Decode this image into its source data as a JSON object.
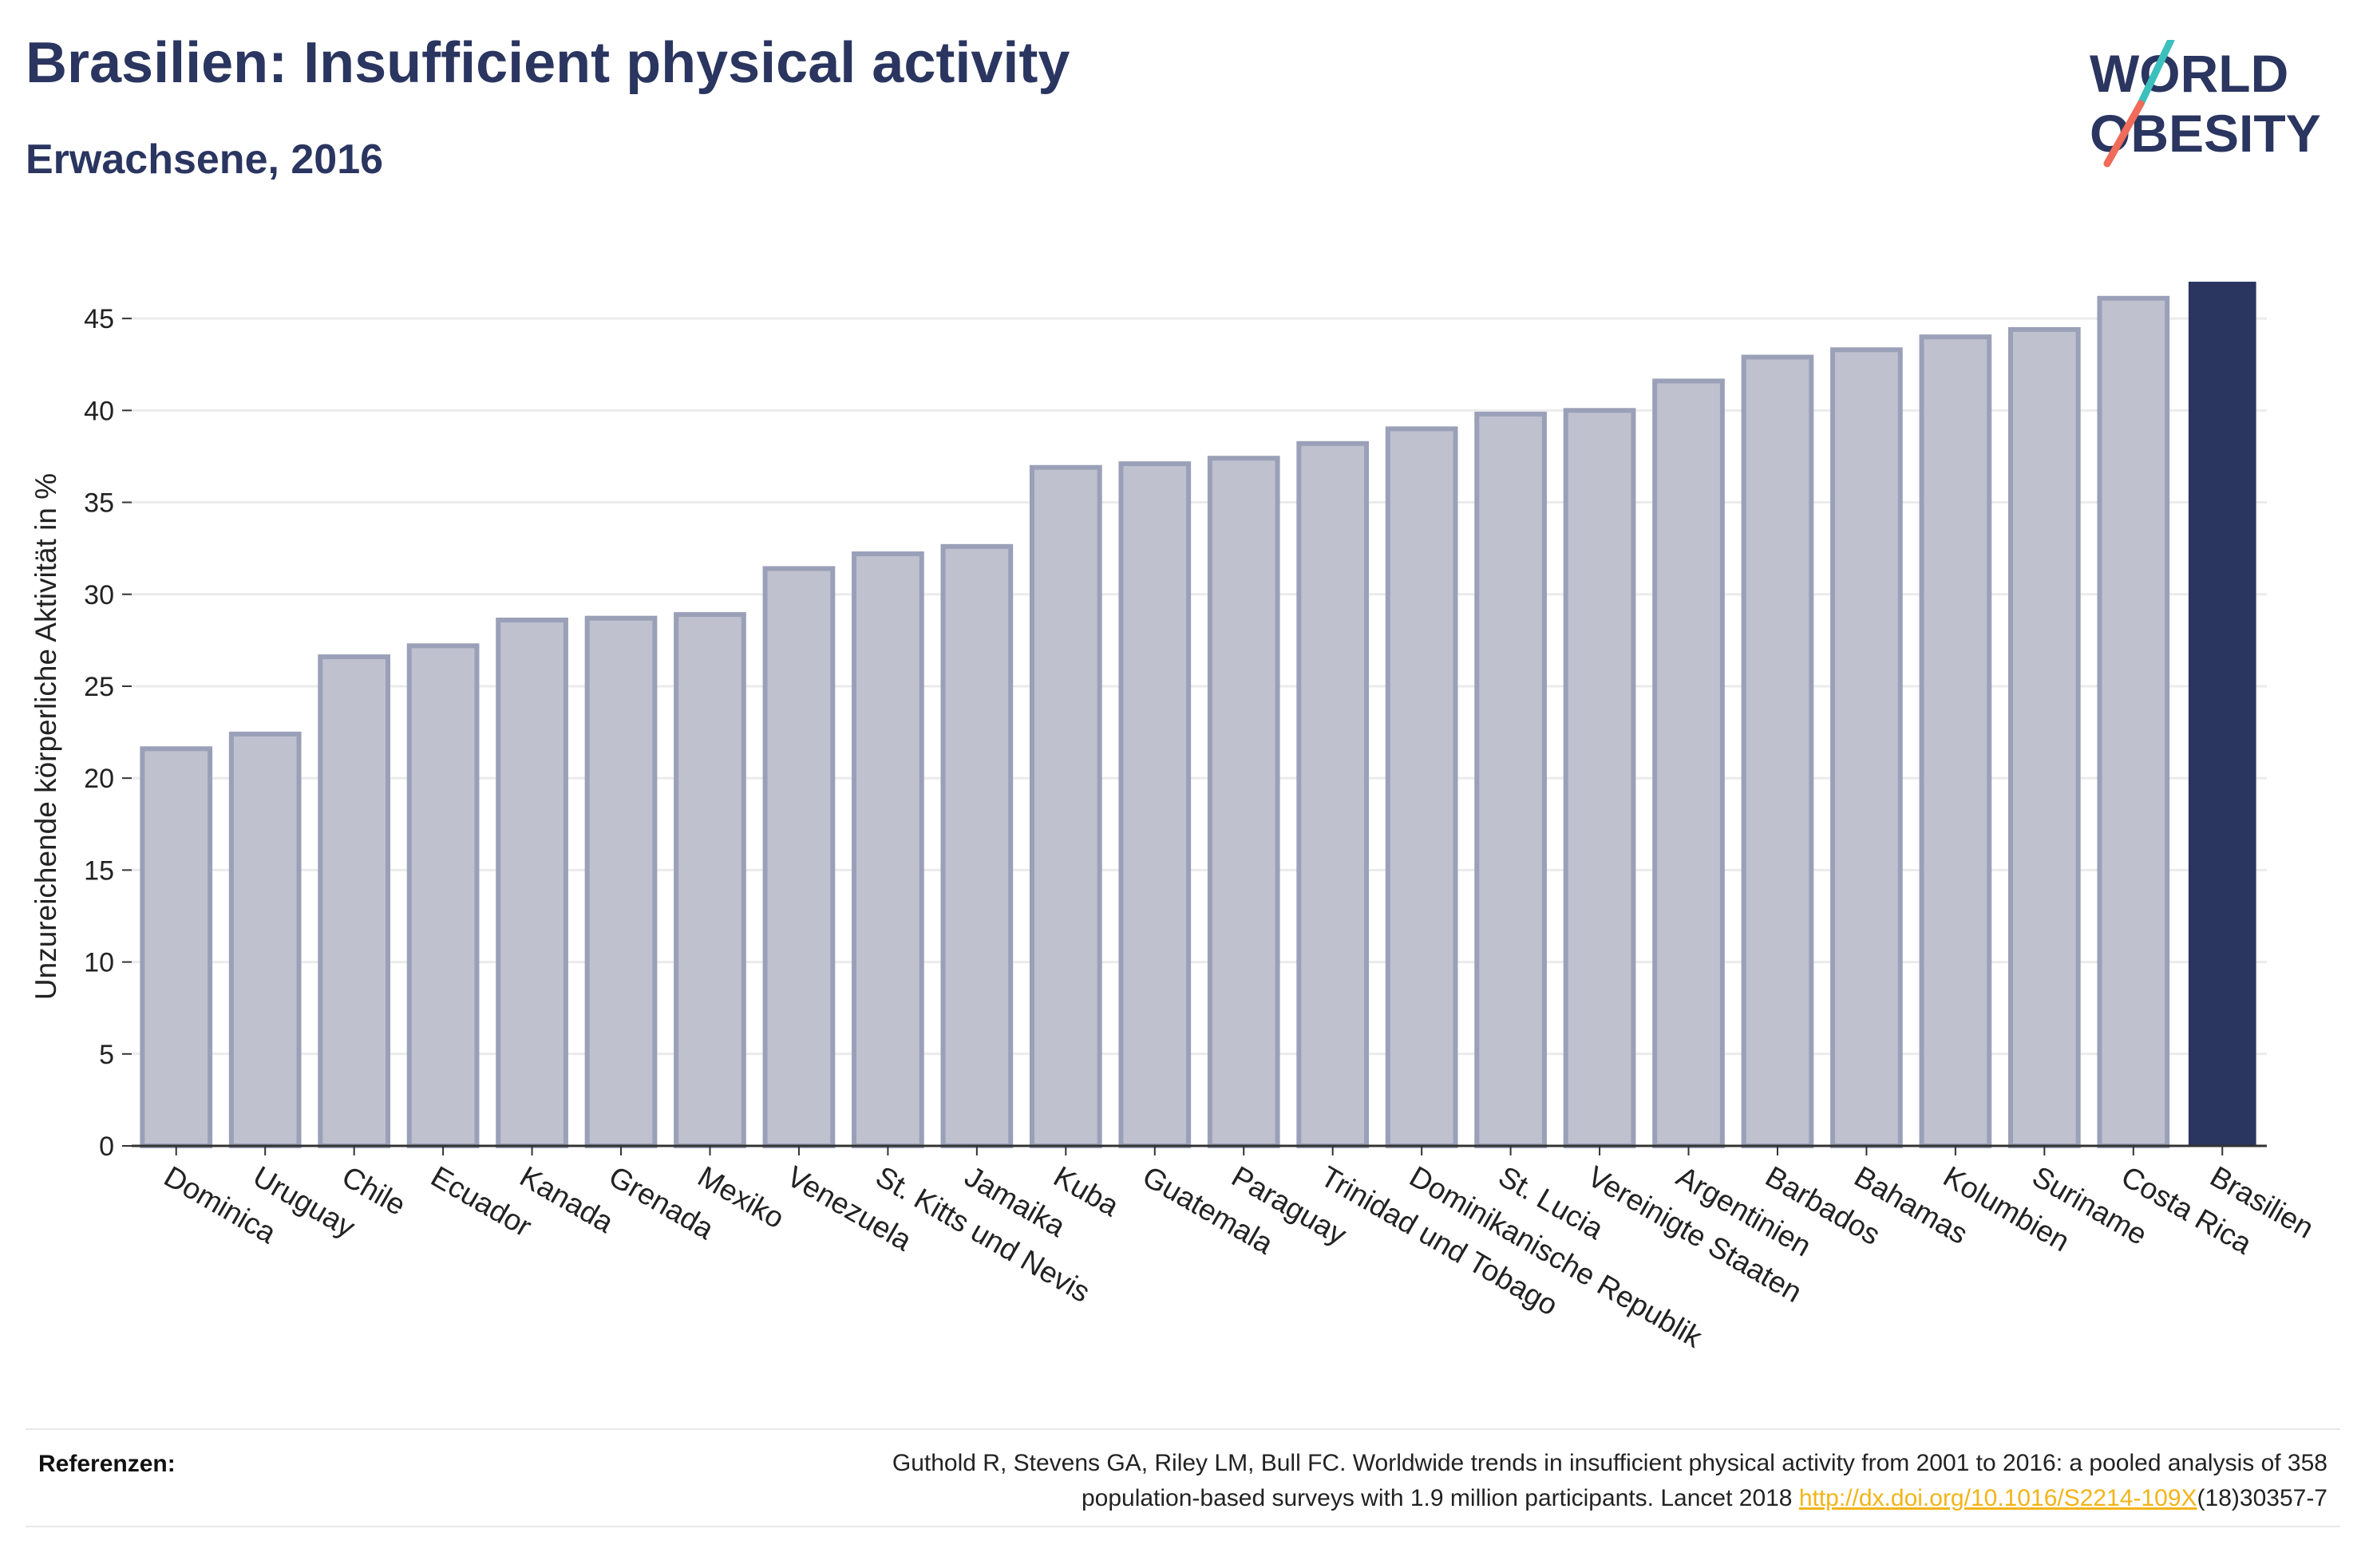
{
  "header": {
    "title": "Brasilien: Insufficient physical activity",
    "subtitle": "Erwachsene, 2016"
  },
  "logo": {
    "line1": "WORLD",
    "line2": "OBESITY",
    "colors": {
      "text": "#2a3560",
      "slash_top": "#3cc0bd",
      "slash_bottom": "#ef6b5a"
    }
  },
  "chart_data": {
    "type": "bar",
    "categories": [
      "Dominica",
      "Uruguay",
      "Chile",
      "Ecuador",
      "Kanada",
      "Grenada",
      "Mexiko",
      "Venezuela",
      "St. Kitts und Nevis",
      "Jamaika",
      "Kuba",
      "Guatemala",
      "Paraguay",
      "Trinidad und Tobago",
      "Dominikanische Republik",
      "St. Lucia",
      "Vereinigte Staaten",
      "Argentinien",
      "Barbados",
      "Bahamas",
      "Kolumbien",
      "Suriname",
      "Costa Rica",
      "Brasilien"
    ],
    "values": [
      21.6,
      22.4,
      26.6,
      27.2,
      28.6,
      28.7,
      28.9,
      31.4,
      32.2,
      32.6,
      36.9,
      37.1,
      37.4,
      38.2,
      39.0,
      39.8,
      40.0,
      41.6,
      42.9,
      43.3,
      44.0,
      44.4,
      46.1,
      47.0
    ],
    "highlight": "Brasilien",
    "ylabel": "Unzureichende körperliche Aktivität in %",
    "xlabel": "",
    "ylim": [
      0,
      48
    ],
    "yticks": [
      0,
      5,
      10,
      15,
      20,
      25,
      30,
      35,
      40,
      45
    ],
    "grid": true,
    "colors": {
      "bar_fill": "#bfc1ce",
      "bar_stroke": "#9aa0b8",
      "highlight": "#2a3560",
      "grid": "#ebebeb",
      "axis": "#333333"
    }
  },
  "footer": {
    "label": "Referenzen:",
    "citation_line1": "Guthold R, Stevens GA, Riley LM, Bull FC. Worldwide trends in insufficient physical activity from 2001 to 2016: a pooled analysis of 358",
    "citation_line2_pre": "population-based surveys with 1.9 million participants. Lancet 2018 ",
    "link_text": "http://dx.doi.org/10.1016/S2214-109X",
    "citation_line2_post": "(18)30357-7"
  }
}
